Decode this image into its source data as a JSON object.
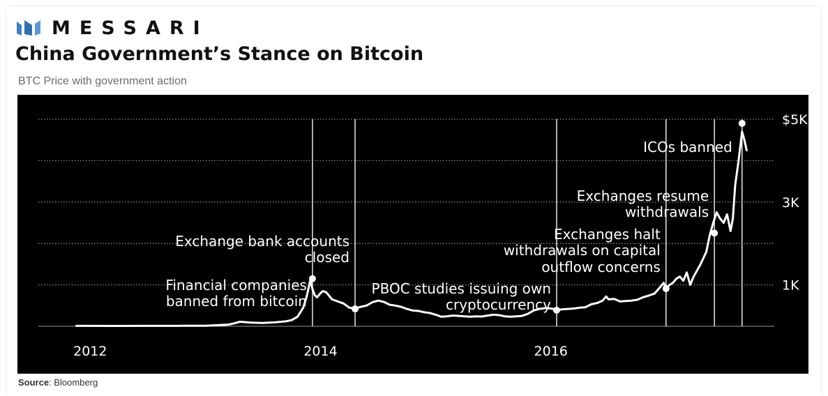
{
  "brand": {
    "name": "MESSARI",
    "logo_icon": "messari-logo-icon"
  },
  "title": "China Government’s Stance on Bitcoin",
  "subtitle": "BTC Price with government action",
  "source": {
    "label": "Source",
    "text": ": Bloomberg"
  },
  "colors": {
    "plot_bg": "#000000",
    "line": "#ffffff",
    "grid": "#8a8a8a",
    "text": "#ffffff",
    "logo": "#3d7fc0"
  },
  "chart_data": {
    "type": "line",
    "title": "",
    "xlabel": "",
    "ylabel": "",
    "xlim": [
      2011.55,
      2017.94
    ],
    "ylim": [
      0,
      5000
    ],
    "x_ticks": [
      {
        "value": 2012,
        "label": "2012"
      },
      {
        "value": 2014,
        "label": "2014"
      },
      {
        "value": 2016,
        "label": "2016"
      }
    ],
    "y_ticks": [
      {
        "value": 1000,
        "label": "1K"
      },
      {
        "value": 3000,
        "label": "3K"
      },
      {
        "value": 5000,
        "label": "$5K"
      }
    ],
    "grid": "horizontal dotted",
    "series": [
      {
        "values": [
          [
            2011.88,
            10
          ],
          [
            2012.2,
            8
          ],
          [
            2012.5,
            10
          ],
          [
            2012.8,
            12
          ],
          [
            2013.0,
            14
          ],
          [
            2013.2,
            40
          ],
          [
            2013.25,
            70
          ],
          [
            2013.3,
            110
          ],
          [
            2013.4,
            90
          ],
          [
            2013.5,
            80
          ],
          [
            2013.6,
            95
          ],
          [
            2013.7,
            120
          ],
          [
            2013.75,
            150
          ],
          [
            2013.8,
            230
          ],
          [
            2013.85,
            450
          ],
          [
            2013.88,
            720
          ],
          [
            2013.91,
            1100
          ],
          [
            2013.93,
            900
          ],
          [
            2013.95,
            750
          ],
          [
            2013.97,
            700
          ],
          [
            2014.0,
            800
          ],
          [
            2014.02,
            850
          ],
          [
            2014.05,
            820
          ],
          [
            2014.1,
            650
          ],
          [
            2014.15,
            600
          ],
          [
            2014.2,
            550
          ],
          [
            2014.25,
            450
          ],
          [
            2014.3,
            430
          ],
          [
            2014.35,
            470
          ],
          [
            2014.4,
            500
          ],
          [
            2014.45,
            580
          ],
          [
            2014.5,
            620
          ],
          [
            2014.55,
            590
          ],
          [
            2014.6,
            520
          ],
          [
            2014.65,
            500
          ],
          [
            2014.7,
            470
          ],
          [
            2014.75,
            420
          ],
          [
            2014.8,
            380
          ],
          [
            2014.85,
            370
          ],
          [
            2014.9,
            340
          ],
          [
            2014.95,
            320
          ],
          [
            2015.0,
            280
          ],
          [
            2015.05,
            230
          ],
          [
            2015.1,
            240
          ],
          [
            2015.15,
            260
          ],
          [
            2015.2,
            250
          ],
          [
            2015.25,
            240
          ],
          [
            2015.3,
            230
          ],
          [
            2015.35,
            240
          ],
          [
            2015.4,
            235
          ],
          [
            2015.45,
            260
          ],
          [
            2015.5,
            280
          ],
          [
            2015.55,
            270
          ],
          [
            2015.6,
            240
          ],
          [
            2015.65,
            230
          ],
          [
            2015.7,
            240
          ],
          [
            2015.75,
            250
          ],
          [
            2015.8,
            300
          ],
          [
            2015.85,
            380
          ],
          [
            2015.9,
            420
          ],
          [
            2015.95,
            440
          ],
          [
            2016.0,
            430
          ],
          [
            2016.02,
            420
          ],
          [
            2016.05,
            390
          ],
          [
            2016.1,
            410
          ],
          [
            2016.15,
            420
          ],
          [
            2016.2,
            430
          ],
          [
            2016.25,
            450
          ],
          [
            2016.3,
            460
          ],
          [
            2016.35,
            530
          ],
          [
            2016.4,
            560
          ],
          [
            2016.45,
            620
          ],
          [
            2016.48,
            720
          ],
          [
            2016.5,
            650
          ],
          [
            2016.55,
            660
          ],
          [
            2016.6,
            600
          ],
          [
            2016.65,
            610
          ],
          [
            2016.7,
            620
          ],
          [
            2016.75,
            640
          ],
          [
            2016.8,
            700
          ],
          [
            2016.85,
            740
          ],
          [
            2016.9,
            790
          ],
          [
            2016.95,
            950
          ],
          [
            2016.98,
            1050
          ],
          [
            2017.0,
            900
          ],
          [
            2017.03,
            1000
          ],
          [
            2017.06,
            1050
          ],
          [
            2017.09,
            1150
          ],
          [
            2017.12,
            1200
          ],
          [
            2017.15,
            1100
          ],
          [
            2017.18,
            1300
          ],
          [
            2017.21,
            1000
          ],
          [
            2017.24,
            1200
          ],
          [
            2017.27,
            1350
          ],
          [
            2017.3,
            1500
          ],
          [
            2017.35,
            1800
          ],
          [
            2017.38,
            2200
          ],
          [
            2017.41,
            2500
          ],
          [
            2017.44,
            2750
          ],
          [
            2017.47,
            2600
          ],
          [
            2017.5,
            2500
          ],
          [
            2017.53,
            2700
          ],
          [
            2017.56,
            2300
          ],
          [
            2017.58,
            2600
          ],
          [
            2017.6,
            3400
          ],
          [
            2017.63,
            4000
          ],
          [
            2017.66,
            4700
          ],
          [
            2017.68,
            4500
          ],
          [
            2017.7,
            4250
          ]
        ]
      }
    ],
    "events": [
      {
        "x": 2013.93,
        "y": 1150,
        "label_lines": [
          "Financial companies",
          "banned from bitcoin"
        ]
      },
      {
        "x": 2014.3,
        "y": 420,
        "label_lines": [
          "Exchange bank accounts",
          "closed"
        ]
      },
      {
        "x": 2016.05,
        "y": 390,
        "label_lines": [
          "PBOC studies issuing own",
          "cryptocurrency"
        ]
      },
      {
        "x": 2017.0,
        "y": 910,
        "label_lines": [
          "Exchanges halt",
          "withdrawals on capital",
          "outflow concerns"
        ]
      },
      {
        "x": 2017.42,
        "y": 2250,
        "label_lines": [
          "Exchanges resume",
          "withdrawals"
        ]
      },
      {
        "x": 2017.66,
        "y": 4900,
        "label_lines": [
          "ICOs banned"
        ]
      }
    ]
  }
}
